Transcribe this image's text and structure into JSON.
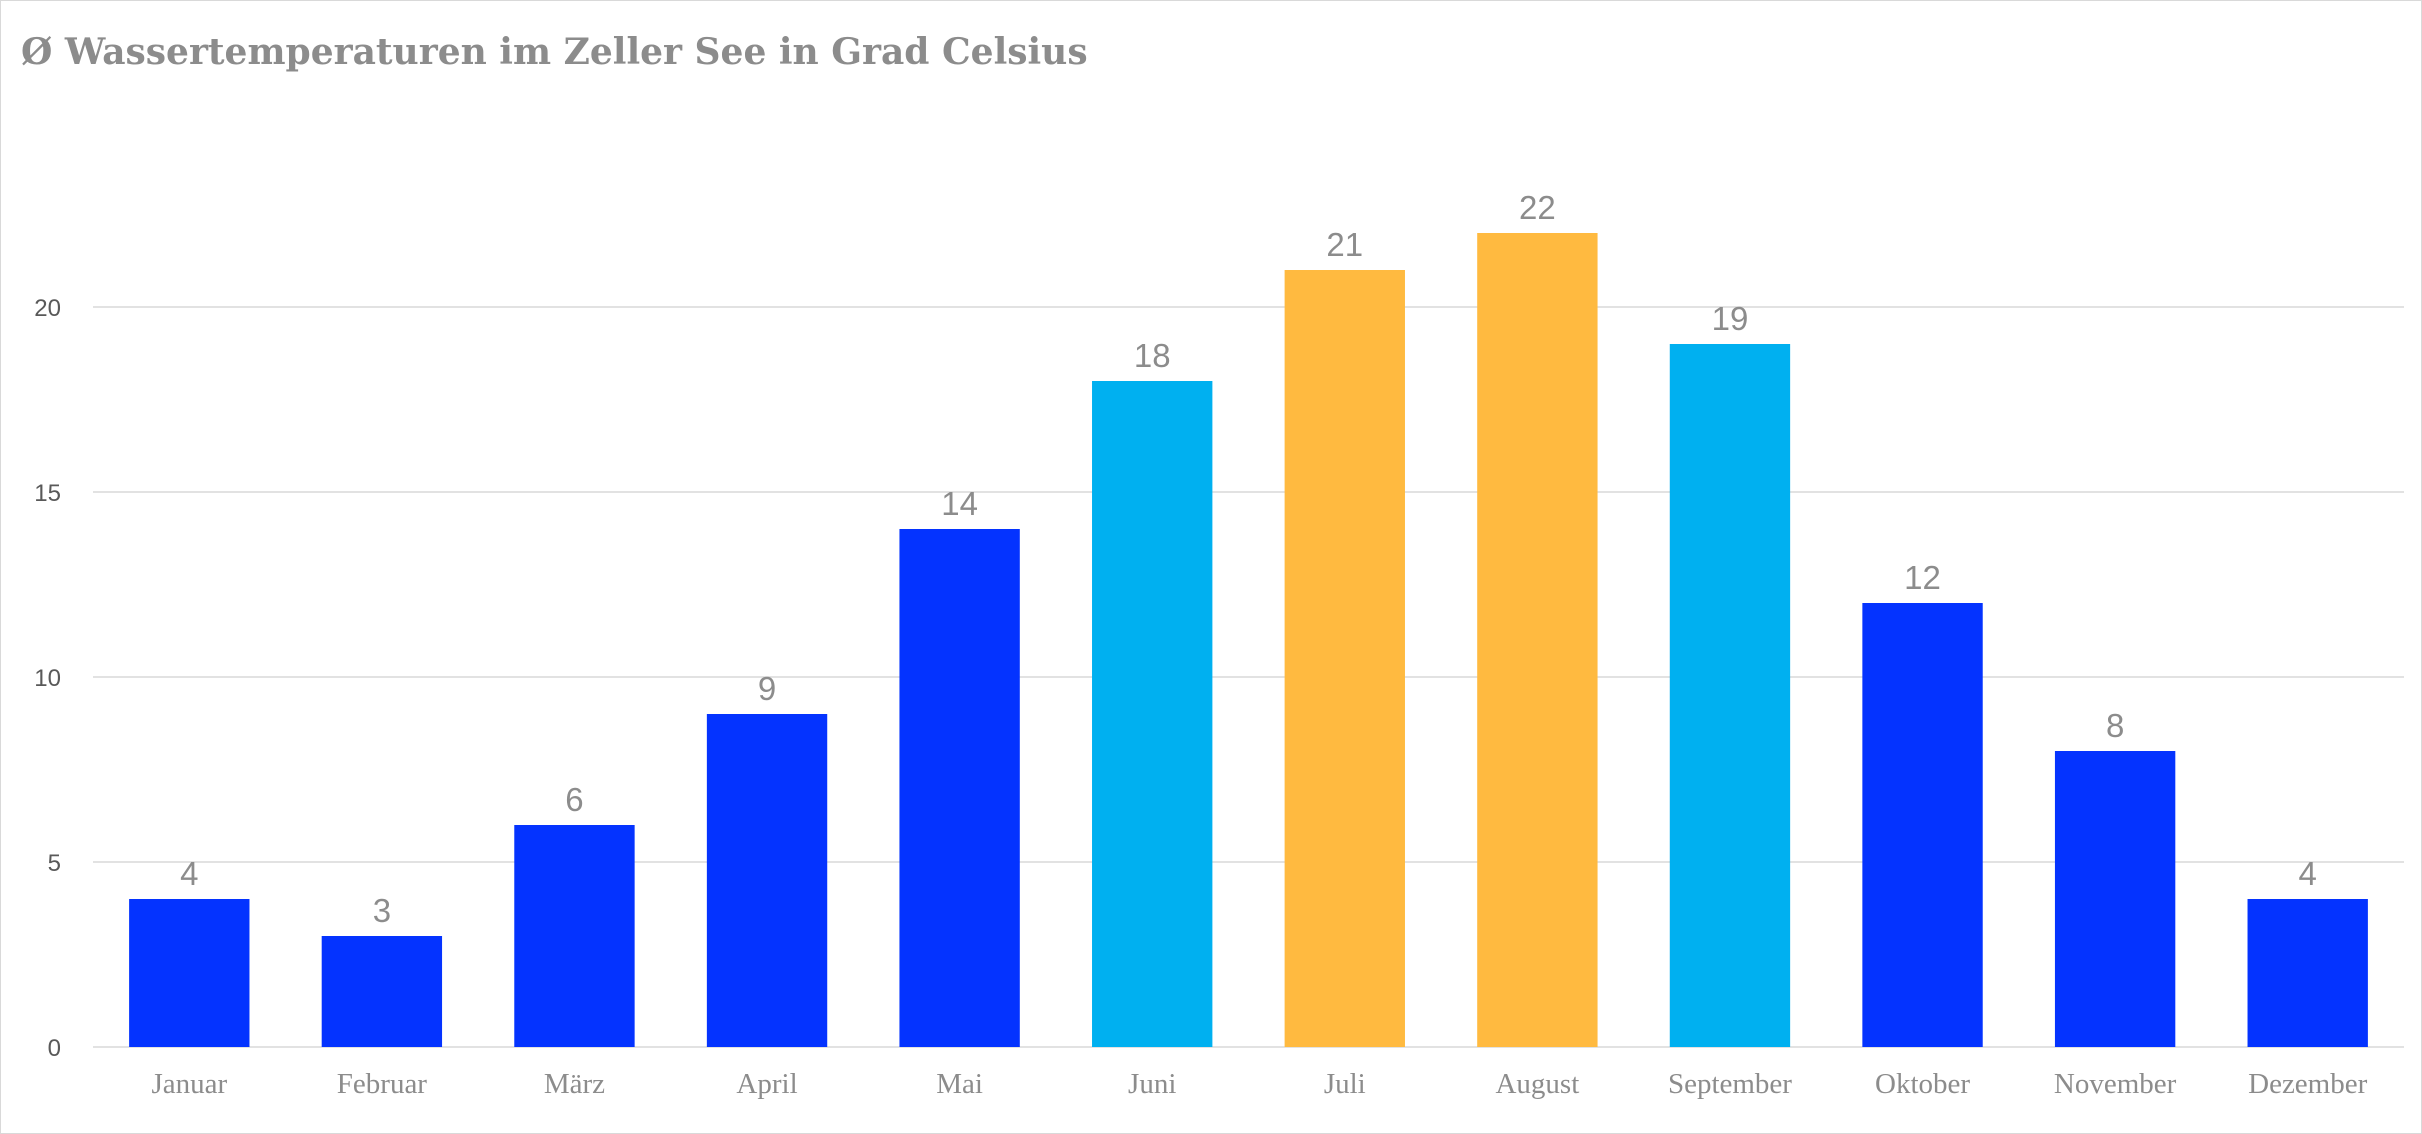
{
  "chart_data": {
    "type": "bar",
    "title": "Ø Wassertemperaturen im Zeller See in Grad Celsius",
    "categories": [
      "Januar",
      "Februar",
      "März",
      "April",
      "Mai",
      "Juni",
      "Juli",
      "August",
      "September",
      "Oktober",
      "November",
      "Dezember"
    ],
    "values": [
      4,
      3,
      6,
      9,
      14,
      18,
      21,
      22,
      19,
      12,
      8,
      4
    ],
    "bar_colors": [
      "#0433FF",
      "#0433FF",
      "#0433FF",
      "#0433FF",
      "#0433FF",
      "#00B0F0",
      "#FFBA40",
      "#FFBA40",
      "#00B0F0",
      "#0433FF",
      "#0433FF",
      "#0433FF"
    ],
    "ylim": [
      0,
      25
    ],
    "yticks": [
      0,
      5,
      10,
      15,
      20
    ],
    "xlabel": "",
    "ylabel": "",
    "grid": true,
    "legend": "none",
    "data_labels": true
  }
}
